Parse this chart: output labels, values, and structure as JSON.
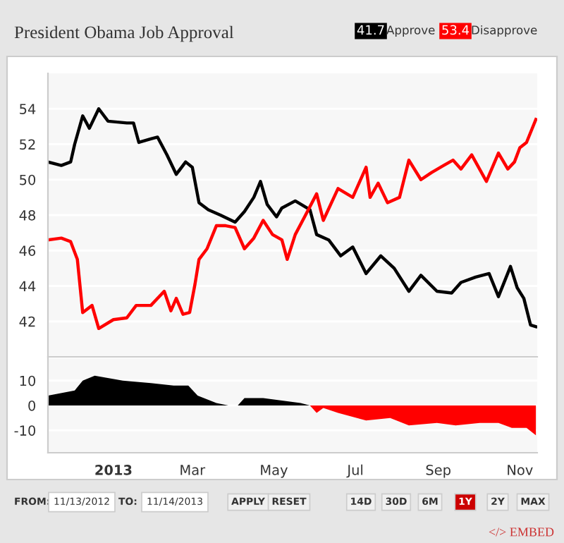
{
  "chart_data": [
    {
      "type": "line",
      "title": "President Obama Job Approval",
      "legend": "top right",
      "grid": "y",
      "tick_labels": "y",
      "xlim": [
        "2012-11-13",
        "2013-11-14"
      ],
      "ylim": [
        40,
        56
      ],
      "yticks": [
        42,
        44,
        46,
        48,
        50,
        52,
        54
      ],
      "annotations": [
        "41.7",
        "53.4"
      ],
      "series": [
        {
          "name": "Approve",
          "color": "#000000",
          "x": [
            "2012-11-13",
            "2012-11-23",
            "2012-11-30",
            "2012-12-03",
            "2012-12-09",
            "2012-12-14",
            "2012-12-21",
            "2012-12-28",
            "2013-01-11",
            "2013-01-16",
            "2013-01-20",
            "2013-01-29",
            "2013-02-03",
            "2013-02-10",
            "2013-02-17",
            "2013-02-24",
            "2013-03-01",
            "2013-03-06",
            "2013-03-13",
            "2013-03-22",
            "2013-04-02",
            "2013-04-09",
            "2013-04-16",
            "2013-04-21",
            "2013-04-26",
            "2013-05-03",
            "2013-05-07",
            "2013-05-17",
            "2013-05-28",
            "2013-06-02",
            "2013-06-11",
            "2013-06-20",
            "2013-06-29",
            "2013-07-09",
            "2013-07-20",
            "2013-07-30",
            "2013-08-10",
            "2013-08-19",
            "2013-08-31",
            "2013-09-11",
            "2013-09-18",
            "2013-09-29",
            "2013-10-09",
            "2013-10-16",
            "2013-10-25",
            "2013-10-30",
            "2013-11-04",
            "2013-11-09",
            "2013-11-13"
          ],
          "values": [
            51.0,
            50.8,
            51.0,
            52.0,
            53.6,
            52.9,
            54.0,
            53.3,
            53.2,
            53.2,
            52.1,
            52.3,
            52.4,
            51.4,
            50.3,
            51.0,
            50.7,
            48.7,
            48.3,
            48.0,
            47.6,
            48.2,
            49.0,
            49.9,
            48.6,
            47.9,
            48.4,
            48.8,
            48.3,
            46.9,
            46.6,
            45.7,
            46.2,
            44.7,
            45.7,
            45.0,
            43.7,
            44.6,
            43.7,
            43.6,
            44.2,
            44.5,
            44.7,
            43.4,
            45.1,
            43.9,
            43.3,
            41.8,
            41.7
          ]
        },
        {
          "name": "Disapprove",
          "color": "#ff0000",
          "x": [
            "2012-11-13",
            "2012-11-23",
            "2012-11-30",
            "2012-12-05",
            "2012-12-09",
            "2012-12-16",
            "2012-12-21",
            "2013-01-01",
            "2013-01-11",
            "2013-01-18",
            "2013-01-29",
            "2013-02-08",
            "2013-02-13",
            "2013-02-17",
            "2013-02-22",
            "2013-02-27",
            "2013-03-03",
            "2013-03-06",
            "2013-03-12",
            "2013-03-19",
            "2013-03-26",
            "2013-04-02",
            "2013-04-09",
            "2013-04-16",
            "2013-04-23",
            "2013-04-30",
            "2013-05-07",
            "2013-05-11",
            "2013-05-17",
            "2013-05-24",
            "2013-06-02",
            "2013-06-07",
            "2013-06-18",
            "2013-06-29",
            "2013-07-09",
            "2013-07-12",
            "2013-07-18",
            "2013-07-25",
            "2013-08-03",
            "2013-08-10",
            "2013-08-19",
            "2013-08-27",
            "2013-09-05",
            "2013-09-12",
            "2013-09-18",
            "2013-09-26",
            "2013-10-07",
            "2013-10-16",
            "2013-10-23",
            "2013-10-28",
            "2013-11-01",
            "2013-11-06",
            "2013-11-13"
          ],
          "values": [
            46.6,
            46.7,
            46.5,
            45.5,
            42.5,
            42.9,
            41.6,
            42.1,
            42.2,
            42.9,
            42.9,
            43.7,
            42.6,
            43.3,
            42.4,
            42.5,
            44.1,
            45.5,
            46.1,
            47.4,
            47.4,
            47.3,
            46.1,
            46.7,
            47.7,
            46.9,
            46.6,
            45.5,
            46.9,
            47.9,
            49.2,
            47.7,
            49.5,
            49.0,
            50.7,
            49.0,
            49.8,
            48.7,
            49.0,
            51.1,
            50.0,
            50.4,
            50.8,
            51.1,
            50.6,
            51.4,
            49.9,
            51.5,
            50.6,
            51.0,
            51.8,
            52.1,
            53.4
          ]
        }
      ]
    },
    {
      "type": "area",
      "grid": "y",
      "xlim": [
        "2012-11-13",
        "2013-11-14"
      ],
      "ylim": [
        -19,
        19
      ],
      "yticks": [
        -10,
        0,
        10
      ],
      "xticks": [
        {
          "value": "2013-01-01",
          "label": "2013"
        },
        {
          "value": "2013-03-01",
          "label": "Mar"
        },
        {
          "value": "2013-05-01",
          "label": "May"
        },
        {
          "value": "2013-07-01",
          "label": "Jul"
        },
        {
          "value": "2013-09-01",
          "label": "Sep"
        },
        {
          "value": "2013-11-01",
          "label": "Nov"
        }
      ],
      "annotations": [
        "FROM:",
        "11/13/2012",
        "TO:",
        "11/14/2013",
        "APPLY",
        "RESET",
        "14D",
        "30D",
        "6M",
        "1Y",
        "2Y",
        "MAX",
        "</> EMBED"
      ],
      "series": [
        {
          "color": "#000000",
          "x": [
            "2012-11-13",
            "2012-12-03",
            "2012-12-09",
            "2012-12-18",
            "2013-01-08",
            "2013-01-29",
            "2013-02-15",
            "2013-02-26",
            "2013-03-05",
            "2013-03-19",
            "2013-03-28",
            "2013-03-30",
            "2013-04-04",
            "2013-04-09",
            "2013-04-23",
            "2013-05-07",
            "2013-05-21",
            "2013-05-28"
          ],
          "values": [
            4,
            6,
            10,
            12,
            10,
            9,
            8,
            8,
            4,
            1,
            0,
            0,
            0,
            3,
            3,
            2,
            1,
            0
          ]
        },
        {
          "color": "#ff0000",
          "x": [
            "2013-05-28",
            "2013-06-02",
            "2013-06-07",
            "2013-06-18",
            "2013-07-09",
            "2013-07-27",
            "2013-08-10",
            "2013-08-31",
            "2013-09-14",
            "2013-10-02",
            "2013-10-16",
            "2013-10-26",
            "2013-11-06",
            "2013-11-13"
          ],
          "values": [
            0,
            -3,
            -1,
            -3,
            -6,
            -5,
            -8,
            -7,
            -8,
            -7,
            -7,
            -9,
            -9,
            -12
          ]
        }
      ]
    }
  ]
}
